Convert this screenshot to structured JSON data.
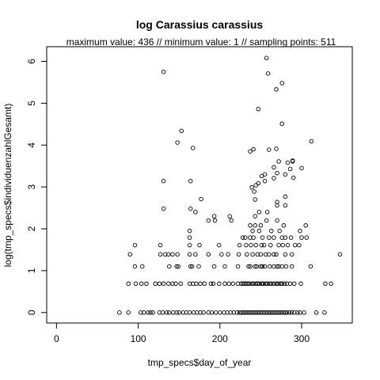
{
  "chart_data": {
    "type": "scatter",
    "title": "log Carassius carassius",
    "subtitle": "maximum value: 436  //  minimum value: 1  // sampling points: 511",
    "xlabel": "tmp_specs$day_of_year",
    "ylabel": "log(tmp_specs$individuenzahlGesamt)",
    "xlim": [
      -12,
      362
    ],
    "ylim": [
      -0.25,
      6.35
    ],
    "xticks": [
      0,
      100,
      200,
      300
    ],
    "yticks": [
      0,
      1,
      2,
      3,
      4,
      5,
      6
    ],
    "grid": false,
    "legend": "none",
    "point_style": "open-circle",
    "points": [
      [
        77,
        0
      ],
      [
        88,
        0
      ],
      [
        103,
        0
      ],
      [
        107,
        0
      ],
      [
        112,
        0
      ],
      [
        115,
        0
      ],
      [
        118,
        0
      ],
      [
        126,
        0
      ],
      [
        130,
        0
      ],
      [
        135,
        0
      ],
      [
        138,
        0
      ],
      [
        143,
        0
      ],
      [
        147,
        0
      ],
      [
        150,
        0
      ],
      [
        155,
        0
      ],
      [
        159,
        0
      ],
      [
        163,
        0
      ],
      [
        168,
        0
      ],
      [
        172,
        0
      ],
      [
        176,
        0
      ],
      [
        180,
        0
      ],
      [
        186,
        0
      ],
      [
        190,
        0
      ],
      [
        195,
        0
      ],
      [
        200,
        0
      ],
      [
        205,
        0
      ],
      [
        209,
        0
      ],
      [
        213,
        0
      ],
      [
        217,
        0
      ],
      [
        221,
        0
      ],
      [
        224,
        0
      ],
      [
        226,
        0
      ],
      [
        228,
        0
      ],
      [
        230,
        0
      ],
      [
        232,
        0
      ],
      [
        234,
        0
      ],
      [
        236,
        0
      ],
      [
        238,
        0
      ],
      [
        240,
        0
      ],
      [
        242,
        0
      ],
      [
        244,
        0
      ],
      [
        246,
        0
      ],
      [
        248,
        0
      ],
      [
        250,
        0
      ],
      [
        252,
        0
      ],
      [
        254,
        0
      ],
      [
        256,
        0
      ],
      [
        258,
        0
      ],
      [
        260,
        0
      ],
      [
        262,
        0
      ],
      [
        264,
        0
      ],
      [
        266,
        0
      ],
      [
        268,
        0
      ],
      [
        270,
        0
      ],
      [
        272,
        0
      ],
      [
        274,
        0
      ],
      [
        276,
        0
      ],
      [
        278,
        0
      ],
      [
        280,
        0
      ],
      [
        282,
        0
      ],
      [
        285,
        0
      ],
      [
        288,
        0
      ],
      [
        291,
        0
      ],
      [
        295,
        0
      ],
      [
        298,
        0
      ],
      [
        303,
        0
      ],
      [
        318,
        0
      ],
      [
        328,
        0
      ],
      [
        88,
        0.69
      ],
      [
        97,
        0.69
      ],
      [
        104,
        0.69
      ],
      [
        110,
        0.69
      ],
      [
        121,
        0.69
      ],
      [
        126,
        0.69
      ],
      [
        131,
        0.69
      ],
      [
        137,
        0.69
      ],
      [
        142,
        0.69
      ],
      [
        146,
        0.69
      ],
      [
        152,
        0.69
      ],
      [
        163,
        0.69
      ],
      [
        167,
        0.69
      ],
      [
        171,
        0.69
      ],
      [
        176,
        0.69
      ],
      [
        181,
        0.69
      ],
      [
        189,
        0.69
      ],
      [
        192,
        0.69
      ],
      [
        199,
        0.69
      ],
      [
        206,
        0.69
      ],
      [
        211,
        0.69
      ],
      [
        216,
        0.69
      ],
      [
        222,
        0.69
      ],
      [
        226,
        0.69
      ],
      [
        228,
        0.69
      ],
      [
        230,
        0.69
      ],
      [
        232,
        0.69
      ],
      [
        234,
        0.69
      ],
      [
        236,
        0.69
      ],
      [
        239,
        0.69
      ],
      [
        241,
        0.69
      ],
      [
        244,
        0.69
      ],
      [
        246,
        0.69
      ],
      [
        248,
        0.69
      ],
      [
        251,
        0.69
      ],
      [
        253,
        0.69
      ],
      [
        256,
        0.69
      ],
      [
        258,
        0.69
      ],
      [
        261,
        0.69
      ],
      [
        263,
        0.69
      ],
      [
        266,
        0.69
      ],
      [
        269,
        0.69
      ],
      [
        271,
        0.69
      ],
      [
        274,
        0.69
      ],
      [
        276,
        0.69
      ],
      [
        279,
        0.69
      ],
      [
        282,
        0.69
      ],
      [
        286,
        0.69
      ],
      [
        291,
        0.69
      ],
      [
        299,
        0.69
      ],
      [
        329,
        0.69
      ],
      [
        336,
        0.69
      ],
      [
        96,
        1.1
      ],
      [
        105,
        1.1
      ],
      [
        138,
        1.1
      ],
      [
        147,
        1.1
      ],
      [
        149,
        1.1
      ],
      [
        164,
        1.1
      ],
      [
        166,
        1.1
      ],
      [
        174,
        1.1
      ],
      [
        193,
        1.1
      ],
      [
        206,
        1.1
      ],
      [
        222,
        1.1
      ],
      [
        235,
        1.1
      ],
      [
        237,
        1.1
      ],
      [
        243,
        1.1
      ],
      [
        245,
        1.1
      ],
      [
        250,
        1.1
      ],
      [
        252,
        1.1
      ],
      [
        255,
        1.1
      ],
      [
        261,
        1.1
      ],
      [
        266,
        1.1
      ],
      [
        270,
        1.1
      ],
      [
        272,
        1.1
      ],
      [
        276,
        1.1
      ],
      [
        281,
        1.1
      ],
      [
        288,
        1.1
      ],
      [
        311,
        1.1
      ],
      [
        90,
        1.39
      ],
      [
        127,
        1.39
      ],
      [
        133,
        1.39
      ],
      [
        137,
        1.39
      ],
      [
        142,
        1.39
      ],
      [
        148,
        1.39
      ],
      [
        163,
        1.39
      ],
      [
        170,
        1.39
      ],
      [
        186,
        1.39
      ],
      [
        202,
        1.39
      ],
      [
        210,
        1.39
      ],
      [
        223,
        1.39
      ],
      [
        233,
        1.39
      ],
      [
        240,
        1.39
      ],
      [
        246,
        1.39
      ],
      [
        250,
        1.39
      ],
      [
        256,
        1.39
      ],
      [
        260,
        1.39
      ],
      [
        266,
        1.39
      ],
      [
        269,
        1.39
      ],
      [
        280,
        1.39
      ],
      [
        288,
        1.39
      ],
      [
        347,
        1.39
      ],
      [
        96,
        1.61
      ],
      [
        127,
        1.61
      ],
      [
        163,
        1.61
      ],
      [
        175,
        1.61
      ],
      [
        199,
        1.61
      ],
      [
        224,
        1.61
      ],
      [
        232,
        1.61
      ],
      [
        238,
        1.61
      ],
      [
        244,
        1.61
      ],
      [
        251,
        1.61
      ],
      [
        254,
        1.61
      ],
      [
        262,
        1.61
      ],
      [
        272,
        1.61
      ],
      [
        277,
        1.61
      ],
      [
        283,
        1.61
      ],
      [
        292,
        1.61
      ],
      [
        297,
        1.61
      ],
      [
        163,
        1.79
      ],
      [
        228,
        1.79
      ],
      [
        231,
        1.79
      ],
      [
        237,
        1.79
      ],
      [
        241,
        1.79
      ],
      [
        252,
        1.79
      ],
      [
        260,
        1.79
      ],
      [
        266,
        1.79
      ],
      [
        276,
        1.79
      ],
      [
        280,
        1.79
      ],
      [
        287,
        1.79
      ],
      [
        300,
        1.79
      ],
      [
        306,
        1.79
      ],
      [
        163,
        1.95
      ],
      [
        240,
        1.95
      ],
      [
        248,
        1.95
      ],
      [
        263,
        1.95
      ],
      [
        273,
        1.95
      ],
      [
        298,
        1.95
      ],
      [
        237,
        2.08
      ],
      [
        243,
        2.08
      ],
      [
        250,
        2.08
      ],
      [
        278,
        2.08
      ],
      [
        305,
        2.08
      ],
      [
        186,
        2.2
      ],
      [
        194,
        2.2
      ],
      [
        214,
        2.2
      ],
      [
        257,
        2.2
      ],
      [
        270,
        2.2
      ],
      [
        212,
        2.3
      ],
      [
        243,
        2.3
      ],
      [
        193,
        2.3
      ],
      [
        164,
        2.48
      ],
      [
        131,
        2.48
      ],
      [
        170,
        2.4
      ],
      [
        248,
        2.4
      ],
      [
        258,
        2.4
      ],
      [
        177,
        2.71
      ],
      [
        243,
        2.7
      ],
      [
        270,
        2.56
      ],
      [
        280,
        2.56
      ],
      [
        270,
        2.64
      ],
      [
        280,
        2.77
      ],
      [
        242,
        2.89
      ],
      [
        239,
        2.99
      ],
      [
        247,
        3.09
      ],
      [
        255,
        3.14
      ],
      [
        131,
        3.14
      ],
      [
        164,
        3.14
      ],
      [
        244,
        3.04
      ],
      [
        266,
        3.21
      ],
      [
        270,
        3.33
      ],
      [
        280,
        3.3
      ],
      [
        290,
        3.22
      ],
      [
        286,
        3.43
      ],
      [
        300,
        3.45
      ],
      [
        255,
        3.3
      ],
      [
        251,
        3.26
      ],
      [
        266,
        3.47
      ],
      [
        272,
        3.61
      ],
      [
        283,
        3.58
      ],
      [
        289,
        3.61
      ],
      [
        289,
        3.63
      ],
      [
        260,
        3.89
      ],
      [
        241,
        3.9
      ],
      [
        237,
        3.85
      ],
      [
        269,
        3.91
      ],
      [
        167,
        3.93
      ],
      [
        312,
        4.09
      ],
      [
        148,
        4.06
      ],
      [
        153,
        4.34
      ],
      [
        276,
        4.51
      ],
      [
        247,
        4.86
      ],
      [
        131,
        5.75
      ],
      [
        276,
        5.48
      ],
      [
        269,
        5.33
      ],
      [
        259,
        5.71
      ],
      [
        257,
        6.08
      ]
    ]
  }
}
